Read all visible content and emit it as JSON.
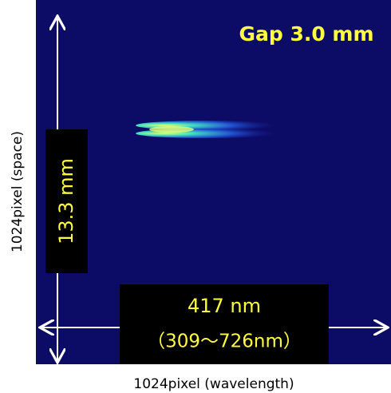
{
  "image": {
    "gap_label": "Gap 3.0 mm",
    "space_extent": "13.3 mm",
    "wavelength_extent": "417 nm",
    "wavelength_range": "（309〜726nm）",
    "y_axis_label": "1024pixel  (space)",
    "x_axis_label": "1024pixel (wavelength)"
  }
}
